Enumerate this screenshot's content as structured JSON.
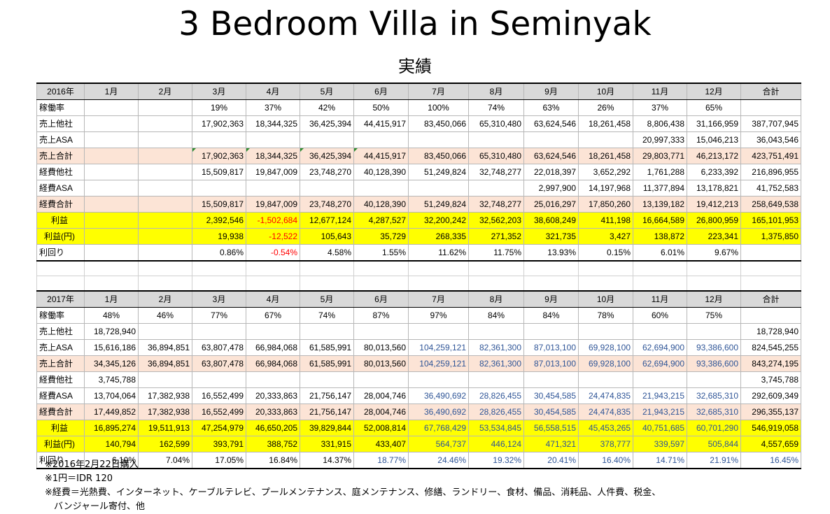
{
  "title": "3 Bedroom Villa in Seminyak",
  "subtitle": "実績",
  "months": [
    "1月",
    "2月",
    "3月",
    "4月",
    "5月",
    "6月",
    "7月",
    "8月",
    "9月",
    "10月",
    "11月",
    "12月"
  ],
  "total_label": "合計",
  "y2016": {
    "year": "2016年",
    "occupancy": {
      "label": "稼働率",
      "values": [
        "",
        "",
        "19%",
        "37%",
        "42%",
        "50%",
        "100%",
        "74%",
        "63%",
        "26%",
        "37%",
        "65%"
      ],
      "total": ""
    },
    "sales_other": {
      "label": "売上他社",
      "values": [
        "",
        "",
        "17,902,363",
        "18,344,325",
        "36,425,394",
        "44,415,917",
        "83,450,066",
        "65,310,480",
        "63,624,546",
        "18,261,458",
        "8,806,438",
        "31,166,959"
      ],
      "total": "387,707,945"
    },
    "sales_asa": {
      "label": "売上ASA",
      "values": [
        "",
        "",
        "",
        "",
        "",
        "",
        "",
        "",
        "",
        "",
        "20,997,333",
        "15,046,213"
      ],
      "total": "36,043,546"
    },
    "sales_total": {
      "label": "売上合計",
      "values": [
        "",
        "",
        "17,902,363",
        "18,344,325",
        "36,425,394",
        "44,415,917",
        "83,450,066",
        "65,310,480",
        "63,624,546",
        "18,261,458",
        "29,803,771",
        "46,213,172"
      ],
      "total": "423,751,491"
    },
    "exp_other": {
      "label": "経費他社",
      "values": [
        "",
        "",
        "15,509,817",
        "19,847,009",
        "23,748,270",
        "40,128,390",
        "51,249,824",
        "32,748,277",
        "22,018,397",
        "3,652,292",
        "1,761,288",
        "6,233,392"
      ],
      "total": "216,896,955"
    },
    "exp_asa": {
      "label": "経費ASA",
      "values": [
        "",
        "",
        "",
        "",
        "",
        "",
        "",
        "",
        "2,997,900",
        "14,197,968",
        "11,377,894",
        "13,178,821"
      ],
      "total": "41,752,583"
    },
    "exp_total": {
      "label": "経費合計",
      "values": [
        "",
        "",
        "15,509,817",
        "19,847,009",
        "23,748,270",
        "40,128,390",
        "51,249,824",
        "32,748,277",
        "25,016,297",
        "17,850,260",
        "13,139,182",
        "19,412,213"
      ],
      "total": "258,649,538"
    },
    "profit": {
      "label": "利益",
      "values": [
        "",
        "",
        "2,392,546",
        "-1,502,684",
        "12,677,124",
        "4,287,527",
        "32,200,242",
        "32,562,203",
        "38,608,249",
        "411,198",
        "16,664,589",
        "26,800,959"
      ],
      "total": "165,101,953"
    },
    "profit_yen": {
      "label": "利益(円)",
      "values": [
        "",
        "",
        "19,938",
        "-12,522",
        "105,643",
        "35,729",
        "268,335",
        "271,352",
        "321,735",
        "3,427",
        "138,872",
        "223,341"
      ],
      "total": "1,375,850"
    },
    "yield": {
      "label": "利回り",
      "values": [
        "",
        "",
        "0.86%",
        "-0.54%",
        "4.58%",
        "1.55%",
        "11.62%",
        "11.75%",
        "13.93%",
        "0.15%",
        "6.01%",
        "9.67%"
      ],
      "total": ""
    }
  },
  "y2017": {
    "year": "2017年",
    "occupancy": {
      "label": "稼働率",
      "values": [
        "48%",
        "46%",
        "77%",
        "67%",
        "74%",
        "87%",
        "97%",
        "84%",
        "84%",
        "78%",
        "60%",
        "75%"
      ],
      "total": ""
    },
    "sales_other": {
      "label": "売上他社",
      "values": [
        "18,728,940",
        "",
        "",
        "",
        "",
        "",
        "",
        "",
        "",
        "",
        "",
        ""
      ],
      "total": "18,728,940"
    },
    "sales_asa": {
      "label": "売上ASA",
      "values": [
        "15,616,186",
        "36,894,851",
        "63,807,478",
        "66,984,068",
        "61,585,991",
        "80,013,560",
        "104,259,121",
        "82,361,300",
        "87,013,100",
        "69,928,100",
        "62,694,900",
        "93,386,600"
      ],
      "total": "824,545,255"
    },
    "sales_total": {
      "label": "売上合計",
      "values": [
        "34,345,126",
        "36,894,851",
        "63,807,478",
        "66,984,068",
        "61,585,991",
        "80,013,560",
        "104,259,121",
        "82,361,300",
        "87,013,100",
        "69,928,100",
        "62,694,900",
        "93,386,600"
      ],
      "total": "843,274,195"
    },
    "exp_other": {
      "label": "経費他社",
      "values": [
        "3,745,788",
        "",
        "",
        "",
        "",
        "",
        "",
        "",
        "",
        "",
        "",
        ""
      ],
      "total": "3,745,788"
    },
    "exp_asa": {
      "label": "経費ASA",
      "values": [
        "13,704,064",
        "17,382,938",
        "16,552,499",
        "20,333,863",
        "21,756,147",
        "28,004,746",
        "36,490,692",
        "28,826,455",
        "30,454,585",
        "24,474,835",
        "21,943,215",
        "32,685,310"
      ],
      "total": "292,609,349"
    },
    "exp_total": {
      "label": "経費合計",
      "values": [
        "17,449,852",
        "17,382,938",
        "16,552,499",
        "20,333,863",
        "21,756,147",
        "28,004,746",
        "36,490,692",
        "28,826,455",
        "30,454,585",
        "24,474,835",
        "21,943,215",
        "32,685,310"
      ],
      "total": "296,355,137"
    },
    "profit": {
      "label": "利益",
      "values": [
        "16,895,274",
        "19,511,913",
        "47,254,979",
        "46,650,205",
        "39,829,844",
        "52,008,814",
        "67,768,429",
        "53,534,845",
        "56,558,515",
        "45,453,265",
        "40,751,685",
        "60,701,290"
      ],
      "total": "546,919,058"
    },
    "profit_yen": {
      "label": "利益(円)",
      "values": [
        "140,794",
        "162,599",
        "393,791",
        "388,752",
        "331,915",
        "433,407",
        "564,737",
        "446,124",
        "471,321",
        "378,777",
        "339,597",
        "505,844"
      ],
      "total": "4,557,659"
    },
    "yield": {
      "label": "利回り",
      "values": [
        "6.10%",
        "7.04%",
        "17.05%",
        "16.84%",
        "14.37%",
        "18.77%",
        "24.46%",
        "19.32%",
        "20.41%",
        "16.40%",
        "14.71%",
        "21.91%"
      ],
      "total": "16.45%"
    }
  },
  "colors": {
    "highlight": "#ffff00",
    "pink": "#fce4d6",
    "header": "#d9d9d9",
    "negative": "#ff0000",
    "projected": "#2f5597"
  },
  "notes": [
    "※2016年2月22日購入",
    "※1円＝IDR 120",
    "※経費＝光熱費、インターネット、ケーブルテレビ、プールメンテナンス、庭メンテナンス、修繕、ランドリー、食材、備品、消耗品、人件費、税金、",
    "　バンジャール寄付、他"
  ]
}
